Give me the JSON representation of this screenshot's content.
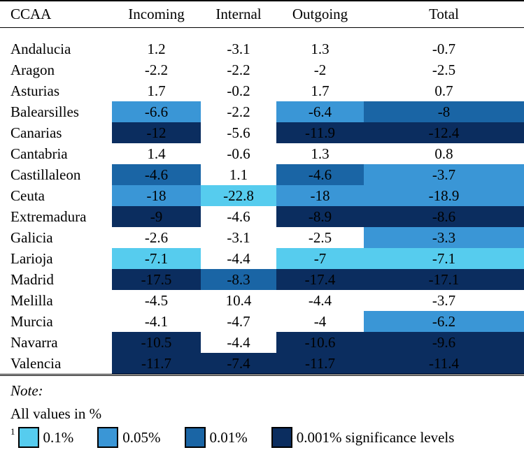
{
  "headers": [
    "CCAA",
    "Incoming",
    "Internal",
    "Outgoing",
    "Total"
  ],
  "rows": [
    {
      "name": "Andalucia",
      "values": [
        "1.2",
        "-3.1",
        "1.3",
        "-0.7"
      ],
      "levels": [
        0,
        0,
        0,
        0
      ]
    },
    {
      "name": "Aragon",
      "values": [
        "-2.2",
        "-2.2",
        "-2",
        "-2.5"
      ],
      "levels": [
        0,
        0,
        0,
        0
      ]
    },
    {
      "name": "Asturias",
      "values": [
        "1.7",
        "-0.2",
        "1.7",
        "0.7"
      ],
      "levels": [
        0,
        0,
        0,
        0
      ]
    },
    {
      "name": "Balearsilles",
      "values": [
        "-6.6",
        "-2.2",
        "-6.4",
        "-8"
      ],
      "levels": [
        2,
        0,
        2,
        3
      ]
    },
    {
      "name": "Canarias",
      "values": [
        "-12",
        "-5.6",
        "-11.9",
        "-12.4"
      ],
      "levels": [
        4,
        0,
        4,
        4
      ]
    },
    {
      "name": "Cantabria",
      "values": [
        "1.4",
        "-0.6",
        "1.3",
        "0.8"
      ],
      "levels": [
        0,
        0,
        0,
        0
      ]
    },
    {
      "name": "Castillaleon",
      "values": [
        "-4.6",
        "1.1",
        "-4.6",
        "-3.7"
      ],
      "levels": [
        3,
        0,
        3,
        2
      ]
    },
    {
      "name": "Ceuta",
      "values": [
        "-18",
        "-22.8",
        "-18",
        "-18.9"
      ],
      "levels": [
        2,
        1,
        2,
        2
      ]
    },
    {
      "name": "Extremadura",
      "values": [
        "-9",
        "-4.6",
        "-8.9",
        "-8.6"
      ],
      "levels": [
        4,
        0,
        4,
        4
      ]
    },
    {
      "name": "Galicia",
      "values": [
        "-2.6",
        "-3.1",
        "-2.5",
        "-3.3"
      ],
      "levels": [
        0,
        0,
        0,
        2
      ]
    },
    {
      "name": "Larioja",
      "values": [
        "-7.1",
        "-4.4",
        "-7",
        "-7.1"
      ],
      "levels": [
        1,
        0,
        1,
        1
      ]
    },
    {
      "name": "Madrid",
      "values": [
        "-17.5",
        "-8.3",
        "-17.4",
        "-17.1"
      ],
      "levels": [
        4,
        3,
        4,
        4
      ]
    },
    {
      "name": "Melilla",
      "values": [
        "-4.5",
        "10.4",
        "-4.4",
        "-3.7"
      ],
      "levels": [
        0,
        0,
        0,
        0
      ]
    },
    {
      "name": "Murcia",
      "values": [
        "-4.1",
        "-4.7",
        "-4",
        "-6.2"
      ],
      "levels": [
        0,
        0,
        0,
        2
      ]
    },
    {
      "name": "Navarra",
      "values": [
        "-10.5",
        "-4.4",
        "-10.6",
        "-9.6"
      ],
      "levels": [
        4,
        0,
        4,
        4
      ]
    },
    {
      "name": "Valencia",
      "values": [
        "-11.7",
        "-7.4",
        "-11.7",
        "-11.4"
      ],
      "levels": [
        4,
        4,
        4,
        4
      ]
    }
  ],
  "note": {
    "label": "Note:",
    "text": "All values in %",
    "footnote_mark": "1",
    "legend": [
      {
        "label": "0.1%",
        "color": "#56ccee"
      },
      {
        "label": "0.05%",
        "color": "#3a96d6"
      },
      {
        "label": "0.01%",
        "color": "#1a65a5"
      },
      {
        "label": "0.001% significance levels",
        "color": "#0b2d5f"
      }
    ]
  }
}
